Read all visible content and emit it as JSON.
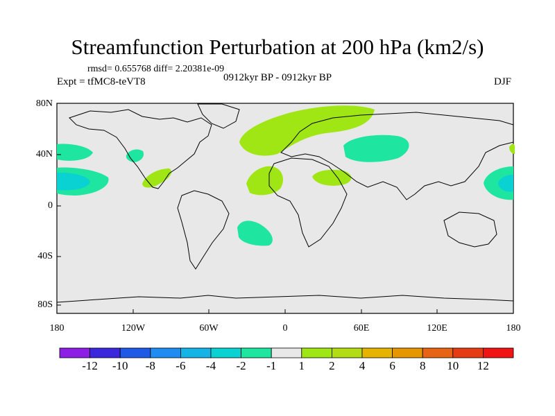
{
  "title": "Streamfunction Perturbation at 200 hPa (km2/s)",
  "stats": "rmsd= 0.655768 diff= 2.20381e-09",
  "experiment": "Expt = tfMC8-teVT8",
  "period": "0912kyr BP - 0912kyr BP",
  "season": "DJF",
  "lat_ticks": [
    "80N",
    "40N",
    "0",
    "40S",
    "80S"
  ],
  "lon_ticks": [
    "180",
    "120W",
    "60W",
    "0",
    "60E",
    "120E",
    "180"
  ],
  "colorbar": {
    "labels": [
      "-12",
      "-10",
      "-8",
      "-6",
      "-4",
      "-2",
      "-1",
      "1",
      "2",
      "4",
      "6",
      "8",
      "10",
      "12"
    ],
    "colors": [
      "#8c1ee6",
      "#3c28dc",
      "#1e5ae6",
      "#1e8cf0",
      "#14b4e6",
      "#0ad2d2",
      "#1ee6a0",
      "#e8e8e8",
      "#a0e614",
      "#b4dc14",
      "#e6b400",
      "#e69600",
      "#e66414",
      "#e63c14",
      "#f01414"
    ]
  },
  "colors": {
    "ocean_bg": "#e8e8e8",
    "pos_light": "#a0e614",
    "neg_light": "#1ee6a0",
    "neg_mid": "#0ad2d2"
  }
}
